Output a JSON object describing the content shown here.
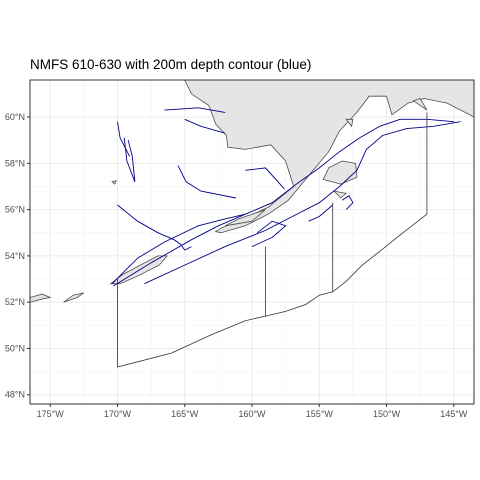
{
  "title": "NMFS 610-630 with 200m depth contour (blue)",
  "chart_data": {
    "type": "map",
    "title": "NMFS 610-630 with 200m depth contour (blue)",
    "xlabel": "",
    "ylabel": "",
    "xlim": [
      -176.5,
      -143.5
    ],
    "ylim": [
      47.6,
      61.6
    ],
    "x_ticks": [
      {
        "value": -175,
        "label": "175°W"
      },
      {
        "value": -170,
        "label": "170°W"
      },
      {
        "value": -165,
        "label": "165°W"
      },
      {
        "value": -160,
        "label": "160°W"
      },
      {
        "value": -155,
        "label": "155°W"
      },
      {
        "value": -150,
        "label": "150°W"
      },
      {
        "value": -145,
        "label": "145°W"
      }
    ],
    "y_ticks": [
      {
        "value": 48,
        "label": "48°N"
      },
      {
        "value": 50,
        "label": "50°N"
      },
      {
        "value": 52,
        "label": "52°N"
      },
      {
        "value": 54,
        "label": "54°N"
      },
      {
        "value": 56,
        "label": "56°N"
      },
      {
        "value": 58,
        "label": "58°N"
      },
      {
        "value": 60,
        "label": "60°N"
      }
    ],
    "grid": true,
    "colors": {
      "land": "#e5e5e5",
      "coast": "#4d4d4d",
      "contour": "#00008b",
      "boundary": "#333333",
      "grid": "#ebebeb"
    },
    "land": [
      [
        [
          -165,
          61.6
        ],
        [
          -164.5,
          61
        ],
        [
          -163.2,
          60.5
        ],
        [
          -162.7,
          59.7
        ],
        [
          -161.9,
          59.2
        ],
        [
          -161.8,
          58.7
        ],
        [
          -160.5,
          58.6
        ],
        [
          -158.6,
          58.8
        ],
        [
          -157.5,
          58.1
        ],
        [
          -156.9,
          57
        ],
        [
          -158.8,
          56.1
        ],
        [
          -160.3,
          55.7
        ],
        [
          -162.3,
          55.2
        ],
        [
          -162.7,
          55.05
        ],
        [
          -162.3,
          55.0
        ],
        [
          -160.5,
          55.3
        ],
        [
          -158.8,
          55.8
        ],
        [
          -157.3,
          56.4
        ],
        [
          -155.6,
          57.6
        ],
        [
          -154.3,
          58.5
        ],
        [
          -153.5,
          59.4
        ],
        [
          -152.2,
          60.2
        ],
        [
          -151.3,
          60.9
        ],
        [
          -150.0,
          60.9
        ],
        [
          -149.6,
          60.1
        ],
        [
          -148.4,
          60.6
        ],
        [
          -147.2,
          60.8
        ],
        [
          -145.5,
          60.6
        ],
        [
          -143.5,
          60.0
        ],
        [
          -143.5,
          61.6
        ]
      ]
    ],
    "islands": [
      [
        [
          -154.7,
          57.3
        ],
        [
          -153.4,
          57.1
        ],
        [
          -152.2,
          57.4
        ],
        [
          -152.3,
          58.0
        ],
        [
          -153.3,
          58.1
        ],
        [
          -154.3,
          57.8
        ]
      ],
      [
        [
          -176.5,
          52.0
        ],
        [
          -175.5,
          52.15
        ],
        [
          -175.0,
          52.2
        ],
        [
          -175.6,
          52.35
        ],
        [
          -176.5,
          52.2
        ]
      ],
      [
        [
          -174.0,
          52.0
        ],
        [
          -173.0,
          52.2
        ],
        [
          -172.5,
          52.4
        ],
        [
          -173.3,
          52.3
        ]
      ],
      [
        [
          -170.5,
          52.8
        ],
        [
          -169.6,
          53.2
        ],
        [
          -168.3,
          53.6
        ],
        [
          -167.0,
          54.0
        ],
        [
          -166.3,
          54.0
        ],
        [
          -166.9,
          53.6
        ],
        [
          -168.6,
          53.1
        ],
        [
          -169.8,
          52.8
        ]
      ],
      [
        [
          -170.4,
          57.2
        ],
        [
          -170.1,
          57.25
        ],
        [
          -170.2,
          57.1
        ]
      ],
      [
        [
          -162.0,
          55.3
        ],
        [
          -161.0,
          55.6
        ],
        [
          -160.0,
          55.8
        ],
        [
          -159.0,
          56.0
        ],
        [
          -160.0,
          55.5
        ]
      ],
      [
        [
          -153.0,
          59.9
        ],
        [
          -152.5,
          59.9
        ],
        [
          -152.6,
          59.6
        ]
      ],
      [
        [
          -153.9,
          56.8
        ],
        [
          -153.0,
          56.7
        ],
        [
          -153.4,
          56.5
        ]
      ],
      [
        [
          -148.0,
          60.7
        ],
        [
          -147.0,
          60.3
        ],
        [
          -147.5,
          60.8
        ]
      ]
    ],
    "depth_contour_200m": [
      [
        [
          -170.3,
          52.7
        ],
        [
          -167.5,
          53.7
        ],
        [
          -164.5,
          54.7
        ],
        [
          -162.5,
          55.3
        ],
        [
          -160.5,
          55.8
        ],
        [
          -158.5,
          56.3
        ],
        [
          -156.7,
          57.1
        ],
        [
          -155.0,
          57.8
        ],
        [
          -153.5,
          58.5
        ],
        [
          -152.0,
          59.1
        ],
        [
          -150.5,
          59.6
        ],
        [
          -149.0,
          59.9
        ],
        [
          -147.0,
          59.9
        ],
        [
          -145.0,
          59.8
        ]
      ],
      [
        [
          -168.0,
          52.8
        ],
        [
          -165.0,
          53.6
        ],
        [
          -162.0,
          54.4
        ],
        [
          -159.0,
          55.1
        ],
        [
          -157.0,
          55.7
        ],
        [
          -155.0,
          56.3
        ],
        [
          -153.5,
          57.0
        ],
        [
          -152.2,
          57.7
        ],
        [
          -151.5,
          58.6
        ],
        [
          -150.3,
          59.2
        ],
        [
          -148.5,
          59.5
        ],
        [
          -146.5,
          59.6
        ],
        [
          -144.5,
          59.8
        ]
      ],
      [
        [
          -170.4,
          52.8
        ],
        [
          -168.5,
          53.9
        ],
        [
          -166.5,
          54.6
        ],
        [
          -164.0,
          55.3
        ],
        [
          -162.0,
          55.6
        ],
        [
          -160.5,
          55.8
        ]
      ],
      [
        [
          -160.0,
          54.4
        ],
        [
          -158.5,
          54.8
        ],
        [
          -157.5,
          55.3
        ],
        [
          -158.5,
          55.5
        ],
        [
          -159.6,
          55.0
        ]
      ],
      [
        [
          -155.8,
          55.5
        ],
        [
          -155.0,
          55.7
        ],
        [
          -154.0,
          56.2
        ],
        [
          -154.4,
          56.0
        ]
      ],
      [
        [
          -153.0,
          56.0
        ],
        [
          -152.5,
          56.3
        ],
        [
          -152.8,
          56.6
        ],
        [
          -153.3,
          56.4
        ]
      ]
    ],
    "depth_contour_shelf": [
      [
        [
          -170.0,
          56.2
        ],
        [
          -168.5,
          55.5
        ],
        [
          -167.0,
          55.0
        ],
        [
          -165.8,
          54.7
        ],
        [
          -165.3,
          54.5
        ],
        [
          -165.0,
          54.25
        ],
        [
          -164.5,
          54.4
        ]
      ],
      [
        [
          -169.5,
          59.1
        ],
        [
          -169.3,
          58.1
        ],
        [
          -168.7,
          57.2
        ],
        [
          -168.9,
          58.3
        ],
        [
          -169.2,
          59.0
        ]
      ],
      [
        [
          -166.5,
          60.3
        ],
        [
          -164.0,
          60.4
        ],
        [
          -162.0,
          60.2
        ]
      ],
      [
        [
          -165.0,
          59.9
        ],
        [
          -163.8,
          59.6
        ],
        [
          -162.0,
          59.3
        ]
      ],
      [
        [
          -165.5,
          57.9
        ],
        [
          -164.9,
          57.2
        ],
        [
          -163.8,
          56.8
        ],
        [
          -161.2,
          56.5
        ]
      ],
      [
        [
          -170.0,
          59.8
        ],
        [
          -169.8,
          59.1
        ],
        [
          -169.1,
          58.3
        ]
      ],
      [
        [
          -160.5,
          57.7
        ],
        [
          -159.0,
          57.8
        ],
        [
          -157.6,
          56.9
        ]
      ]
    ],
    "nmfs_boundaries": [
      [
        [
          -170,
          53.0
        ],
        [
          -170,
          49.2
        ],
        [
          -166,
          49.8
        ],
        [
          -163,
          50.6
        ],
        [
          -160.5,
          51.2
        ],
        [
          -159,
          51.4
        ],
        [
          -157.5,
          51.6
        ],
        [
          -156,
          51.9
        ],
        [
          -155,
          52.3
        ],
        [
          -154,
          52.45
        ],
        [
          -153,
          52.9
        ],
        [
          -151.8,
          53.6
        ],
        [
          -150.5,
          54.2
        ],
        [
          -149.0,
          54.9
        ],
        [
          -147.0,
          55.8
        ],
        [
          -147,
          60.2
        ]
      ],
      [
        [
          -159,
          51.4
        ],
        [
          -159,
          54.4
        ]
      ],
      [
        [
          -154,
          52.45
        ],
        [
          -154,
          56.3
        ]
      ]
    ]
  }
}
